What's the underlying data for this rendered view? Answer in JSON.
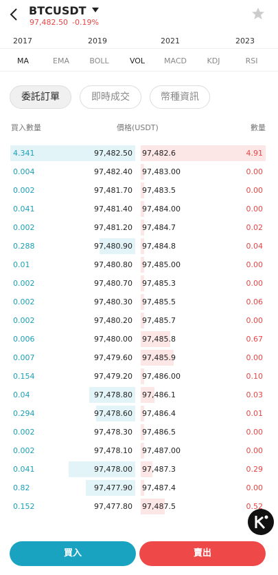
{
  "header": {
    "symbol": "BTCUSDT",
    "price": "97,482.50",
    "change": "-0.19%"
  },
  "chart_axis": {
    "years": [
      "2017",
      "2019",
      "2021",
      "2023"
    ]
  },
  "indicator_tabs": [
    "MA",
    "EMA",
    "BOLL",
    "VOL",
    "MACD",
    "KDJ",
    "RSI"
  ],
  "order_tabs": [
    "委託訂單",
    "即時成交",
    "幣種資訊"
  ],
  "order_book": {
    "headers": [
      "買入數量",
      "價格(USDT)",
      "數量"
    ],
    "rows": [
      [
        "4.341",
        "97,482.50",
        "97,482.6",
        "4.91"
      ],
      [
        "0.004",
        "97,482.40",
        "97,483.00",
        "0.00"
      ],
      [
        "0.002",
        "97,481.70",
        "97,483.5",
        "0.00"
      ],
      [
        "0.041",
        "97,481.40",
        "97,484.00",
        "0.00"
      ],
      [
        "0.002",
        "97,481.20",
        "97,484.7",
        "0.02"
      ],
      [
        "0.288",
        "97,480.90",
        "97,484.8",
        "0.04"
      ],
      [
        "0.01",
        "97,480.80",
        "97,485.00",
        "0.00"
      ],
      [
        "0.002",
        "97,480.70",
        "97,485.3",
        "0.00"
      ],
      [
        "0.002",
        "97,480.30",
        "97,485.5",
        "0.06"
      ],
      [
        "0.002",
        "97,480.20",
        "97,485.7",
        "0.00"
      ],
      [
        "0.006",
        "97,480.00",
        "97,485.8",
        "0.67"
      ],
      [
        "0.007",
        "97,479.60",
        "97,485.9",
        "0.00"
      ],
      [
        "0.154",
        "97,479.20",
        "97,486.00",
        "0.10"
      ],
      [
        "0.04",
        "97,478.80",
        "97,486.1",
        "0.03"
      ],
      [
        "0.294",
        "97,478.60",
        "97,486.4",
        "0.01"
      ],
      [
        "0.002",
        "97,478.30",
        "97,486.5",
        "0.00"
      ],
      [
        "0.002",
        "97,478.10",
        "97,487.00",
        "0.00"
      ],
      [
        "0.041",
        "97,478.00",
        "97,487.3",
        "0.29"
      ],
      [
        "0.82",
        "97,477.90",
        "97,487.4",
        "0.00"
      ],
      [
        "0.152",
        "97,477.80",
        "97,487.5",
        "0.52"
      ]
    ]
  },
  "actions": {
    "buy": "買入",
    "sell": "賣出"
  }
}
